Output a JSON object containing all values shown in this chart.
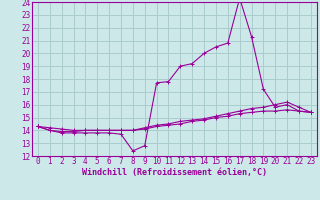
{
  "xlabel": "Windchill (Refroidissement éolien,°C)",
  "bg_color": "#cce8e8",
  "grid_color": "#aacccc",
  "line_color": "#990099",
  "xlim": [
    -0.5,
    23.5
  ],
  "ylim": [
    12,
    24
  ],
  "xticks": [
    0,
    1,
    2,
    3,
    4,
    5,
    6,
    7,
    8,
    9,
    10,
    11,
    12,
    13,
    14,
    15,
    16,
    17,
    18,
    19,
    20,
    21,
    22,
    23
  ],
  "yticks": [
    12,
    13,
    14,
    15,
    16,
    17,
    18,
    19,
    20,
    21,
    22,
    23,
    24
  ],
  "series1_x": [
    0,
    1,
    2,
    3,
    4,
    5,
    6,
    7,
    8,
    9,
    10,
    11,
    12,
    13,
    14,
    15,
    16,
    17,
    18,
    19,
    20,
    21,
    22,
    23
  ],
  "series1_y": [
    14.3,
    14.0,
    13.8,
    13.8,
    13.8,
    13.8,
    13.8,
    13.7,
    12.4,
    12.8,
    17.7,
    17.8,
    19.0,
    19.2,
    20.0,
    20.5,
    20.8,
    24.3,
    21.3,
    17.2,
    15.8,
    16.0,
    15.5,
    15.4
  ],
  "series2_x": [
    0,
    1,
    2,
    3,
    4,
    5,
    6,
    7,
    8,
    9,
    10,
    11,
    12,
    13,
    14,
    15,
    16,
    17,
    18,
    19,
    20,
    21,
    22,
    23
  ],
  "series2_y": [
    14.3,
    14.0,
    13.9,
    13.9,
    14.0,
    14.0,
    14.0,
    14.0,
    14.0,
    14.2,
    14.4,
    14.5,
    14.7,
    14.8,
    14.9,
    15.1,
    15.3,
    15.5,
    15.7,
    15.8,
    16.0,
    16.2,
    15.8,
    15.4
  ],
  "series3_x": [
    0,
    1,
    2,
    3,
    4,
    5,
    6,
    7,
    8,
    9,
    10,
    11,
    12,
    13,
    14,
    15,
    16,
    17,
    18,
    19,
    20,
    21,
    22,
    23
  ],
  "series3_y": [
    14.3,
    14.2,
    14.1,
    14.0,
    14.0,
    14.0,
    14.0,
    14.0,
    14.0,
    14.1,
    14.3,
    14.4,
    14.5,
    14.7,
    14.8,
    15.0,
    15.1,
    15.3,
    15.4,
    15.5,
    15.5,
    15.6,
    15.5,
    15.4
  ],
  "tick_fontsize": 5.5,
  "xlabel_fontsize": 6.0
}
